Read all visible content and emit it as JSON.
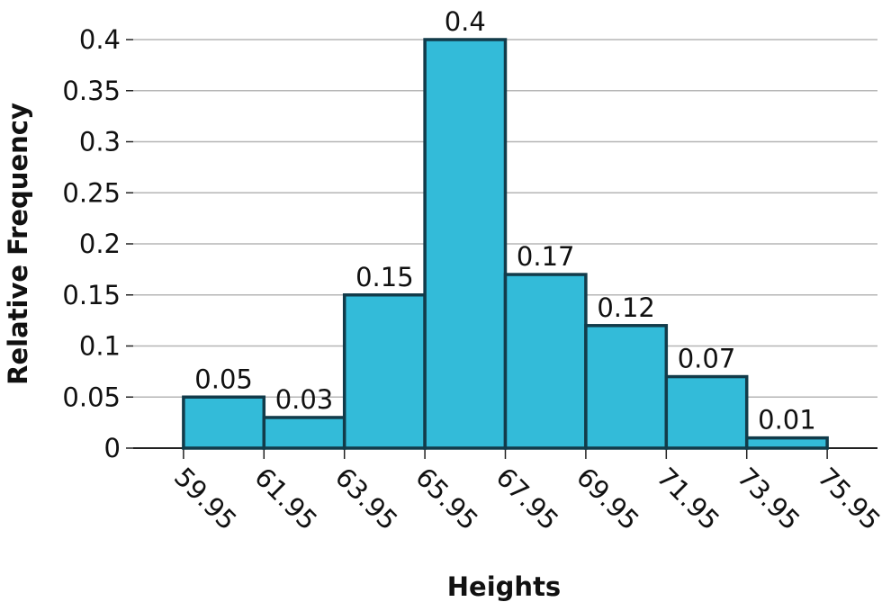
{
  "chart_data": {
    "type": "histogram",
    "xlabel": "Heights",
    "ylabel": "Relative Frequency",
    "bins": [
      59.95,
      61.95,
      63.95,
      65.95,
      67.95,
      69.95,
      71.95,
      73.95,
      75.95
    ],
    "values": [
      0.05,
      0.03,
      0.15,
      0.4,
      0.17,
      0.12,
      0.07,
      0.01
    ],
    "color": "#33bbd9",
    "edgecolor": "#123b4a",
    "xlim": [
      58.7,
      77.2
    ],
    "xticks": [
      59.95,
      61.95,
      63.95,
      65.95,
      67.95,
      69.95,
      71.95,
      73.95,
      75.95
    ],
    "ylim": [
      0,
      0.4
    ],
    "yticks": [
      0,
      0.05,
      0.1,
      0.15,
      0.2,
      0.25,
      0.3,
      0.35,
      0.4
    ],
    "grid": true
  }
}
